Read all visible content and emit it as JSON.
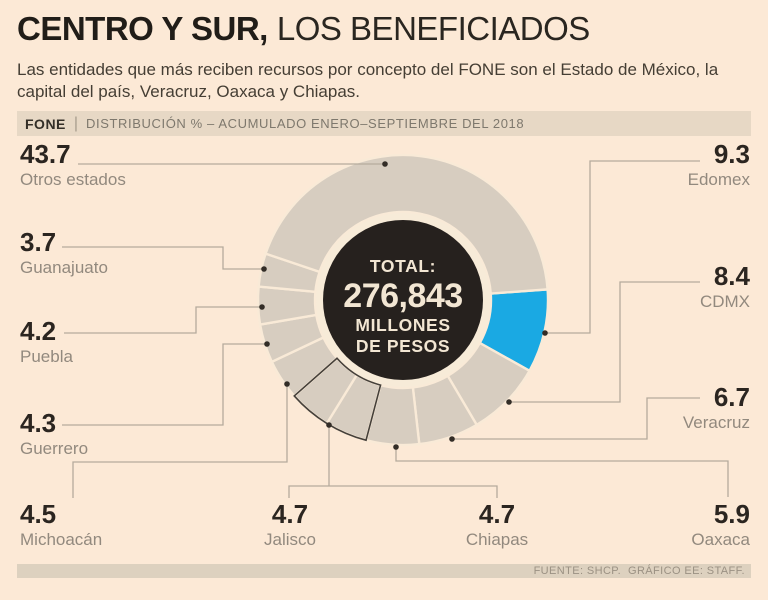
{
  "title": {
    "emphasis": "CENTRO Y SUR,",
    "rest": "LOS BENEFICIADOS"
  },
  "subtitle": "Las entidades que más reciben recursos por concepto del FONE son el Estado de México, la capital del país, Veracruz, Oaxaca y Chiapas.",
  "kicker": {
    "tag": "FONE",
    "separator": "|",
    "text": "DISTRIBUCIÓN % – ACUMULADO ENERO–SEPTIEMBRE DEL 2018"
  },
  "footer": "FUENTE: SHCP.  GRÁFICO EE: STAFF.",
  "chart_data": {
    "type": "pie",
    "subtype": "donut",
    "title": "FONE | Distribución % – acumulado enero–septiembre del 2018",
    "unit": "%",
    "center": {
      "line1": "TOTAL:",
      "line2": "276,843",
      "line3": "MILLONES",
      "line4": "DE PESOS"
    },
    "start_angle_deg": -4.2,
    "direction": "clockwise",
    "legend_position": "callouts",
    "colors": {
      "background": "#fce9d6",
      "slice": "#d7cdc0",
      "highlight": "#1aa9e3",
      "separator": "#f9ead7",
      "center_bg": "#26211e",
      "center_ring": "#f7ebd8",
      "center_text": "#f2e6d3",
      "outline": "#45403a",
      "leader": "#b5ab9d",
      "dot": "#332d27"
    },
    "slices": [
      {
        "label": "Edomex",
        "value": "9.3",
        "highlight": true
      },
      {
        "label": "CDMX",
        "value": "8.4"
      },
      {
        "label": "Veracruz",
        "value": "6.7"
      },
      {
        "label": "Oaxaca",
        "value": "5.9"
      },
      {
        "label": "Chiapas",
        "value": "4.7",
        "outlined": true
      },
      {
        "label": "Jalisco",
        "value": "4.7",
        "outlined": true
      },
      {
        "label": "Michoacán",
        "value": "4.5"
      },
      {
        "label": "Guerrero",
        "value": "4.3"
      },
      {
        "label": "Puebla",
        "value": "4.2"
      },
      {
        "label": "Guanajuato",
        "value": "3.7"
      },
      {
        "label": "Otros estados",
        "value": "43.7"
      }
    ]
  }
}
